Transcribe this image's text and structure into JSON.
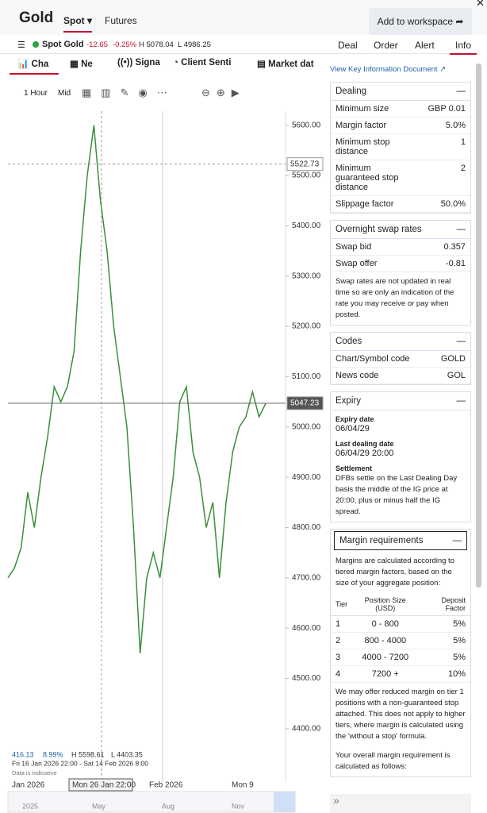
{
  "header": {
    "title": "Gold",
    "tabs": [
      "Spot",
      "Futures"
    ],
    "button": "Add to workspace"
  },
  "market": {
    "name": "Spot Gold",
    "change": "-12.65",
    "change_pct": "-0.25%",
    "high": "H 5078.04",
    "low": "L 4986.25"
  },
  "deal_tabs": [
    "Deal",
    "Order",
    "Alert",
    "Info"
  ],
  "panel_tabs": [
    "Cha",
    "Ne",
    "Signa",
    "Client Senti",
    "Market dat"
  ],
  "toolbar": [
    "1 Hour",
    "Mid"
  ],
  "chart": {
    "type": "line",
    "color": "#3a8f3a",
    "ylim": [
      4365,
      5628
    ],
    "yticks": [
      {
        "value": 5600,
        "label": "5600.00"
      },
      {
        "value": 5500,
        "label": "5500.00"
      },
      {
        "value": 5400,
        "label": "5400.00"
      },
      {
        "value": 5300,
        "label": "5300.00"
      },
      {
        "value": 5200,
        "label": "5200.00"
      },
      {
        "value": 5100,
        "label": "5100.00"
      },
      {
        "value": 5000,
        "label": "5000.00"
      },
      {
        "value": 4900,
        "label": "4900.00"
      },
      {
        "value": 4800,
        "label": "4800.00"
      },
      {
        "value": 4700,
        "label": "4700.00"
      },
      {
        "value": 4600,
        "label": "4600.00"
      },
      {
        "value": 4500,
        "label": "4500.00"
      },
      {
        "value": 4400,
        "label": "4400.00"
      }
    ],
    "values": [
      4700,
      4720,
      4760,
      4870,
      4800,
      4900,
      4980,
      5080,
      5050,
      5080,
      5150,
      5350,
      5500,
      5600,
      5450,
      5350,
      5200,
      5100,
      5000,
      4800,
      4550,
      4700,
      4750,
      4700,
      4800,
      4900,
      5050,
      5080,
      4950,
      4900,
      4800,
      4850,
      4700,
      4850,
      4950,
      5000,
      5020,
      5070,
      5020,
      5047
    ],
    "current": 5047.23,
    "marker": 5522.73,
    "stats": [
      "416.13",
      "8.99%",
      "H 5598.61",
      "L 4403.35"
    ],
    "range": "Fri 16 Jan 2026 22:00 - Sat 14 Feb 2026 8:00",
    "note": "Data is indicative",
    "x_labels": [
      "Jan 2026",
      "Mon 26 Jan 22:00",
      "Feb 2026",
      "Mon 9"
    ],
    "navigator": [
      "2025",
      "May",
      "Aug",
      "Nov"
    ]
  },
  "info": {
    "link": "View Key Information Document",
    "dealing": {
      "title": "Dealing",
      "rows": [
        [
          "Minimum size",
          "GBP 0.01"
        ],
        [
          "Margin factor",
          "5.0%"
        ],
        [
          "Minimum stop distance",
          "1"
        ],
        [
          "Minimum guaranteed stop distance",
          "2"
        ],
        [
          "Slippage factor",
          "50.0%"
        ]
      ]
    },
    "swap": {
      "title": "Overnight swap rates",
      "rows": [
        [
          "Swap bid",
          "0.357"
        ],
        [
          "Swap offer",
          "-0.81"
        ]
      ],
      "note": "Swap rates are not updated in real time so are only an indication of the rate you may receive or pay when posted."
    },
    "codes": {
      "title": "Codes",
      "rows": [
        [
          "Chart/Symbol code",
          "GOLD"
        ],
        [
          "News code",
          "GOL"
        ]
      ]
    },
    "expiry": {
      "title": "Expiry",
      "items": [
        {
          "label": "Expiry date",
          "value": "06/04/29"
        },
        {
          "label": "Last dealing date",
          "value": "06/04/29 20:00"
        },
        {
          "label": "Settlement",
          "value": "DFBs settle on the Last Dealing Day basis the middle of the IG price at 20:00, plus or minus half the IG spread."
        }
      ]
    },
    "margin": {
      "title": "Margin requirements",
      "intro": "Margins are calculated according to tiered margin factors, based on the size of your aggregate position:",
      "head": [
        "Tier",
        "Position Size (USD)",
        "Deposit Factor"
      ],
      "rows": [
        [
          "1",
          "0 - 800",
          "5%"
        ],
        [
          "2",
          "800 - 4000",
          "5%"
        ],
        [
          "3",
          "4000 - 7200",
          "5%"
        ],
        [
          "4",
          "7200 +",
          "10%"
        ]
      ],
      "note": "We may offer reduced margin on tier 1 positions with a non-guaranteed stop attached. This does not apply to higher tiers, where margin is calculated using the 'without a stop' formula.",
      "note2": "Your overall margin requirement is calculated as follows:"
    }
  }
}
